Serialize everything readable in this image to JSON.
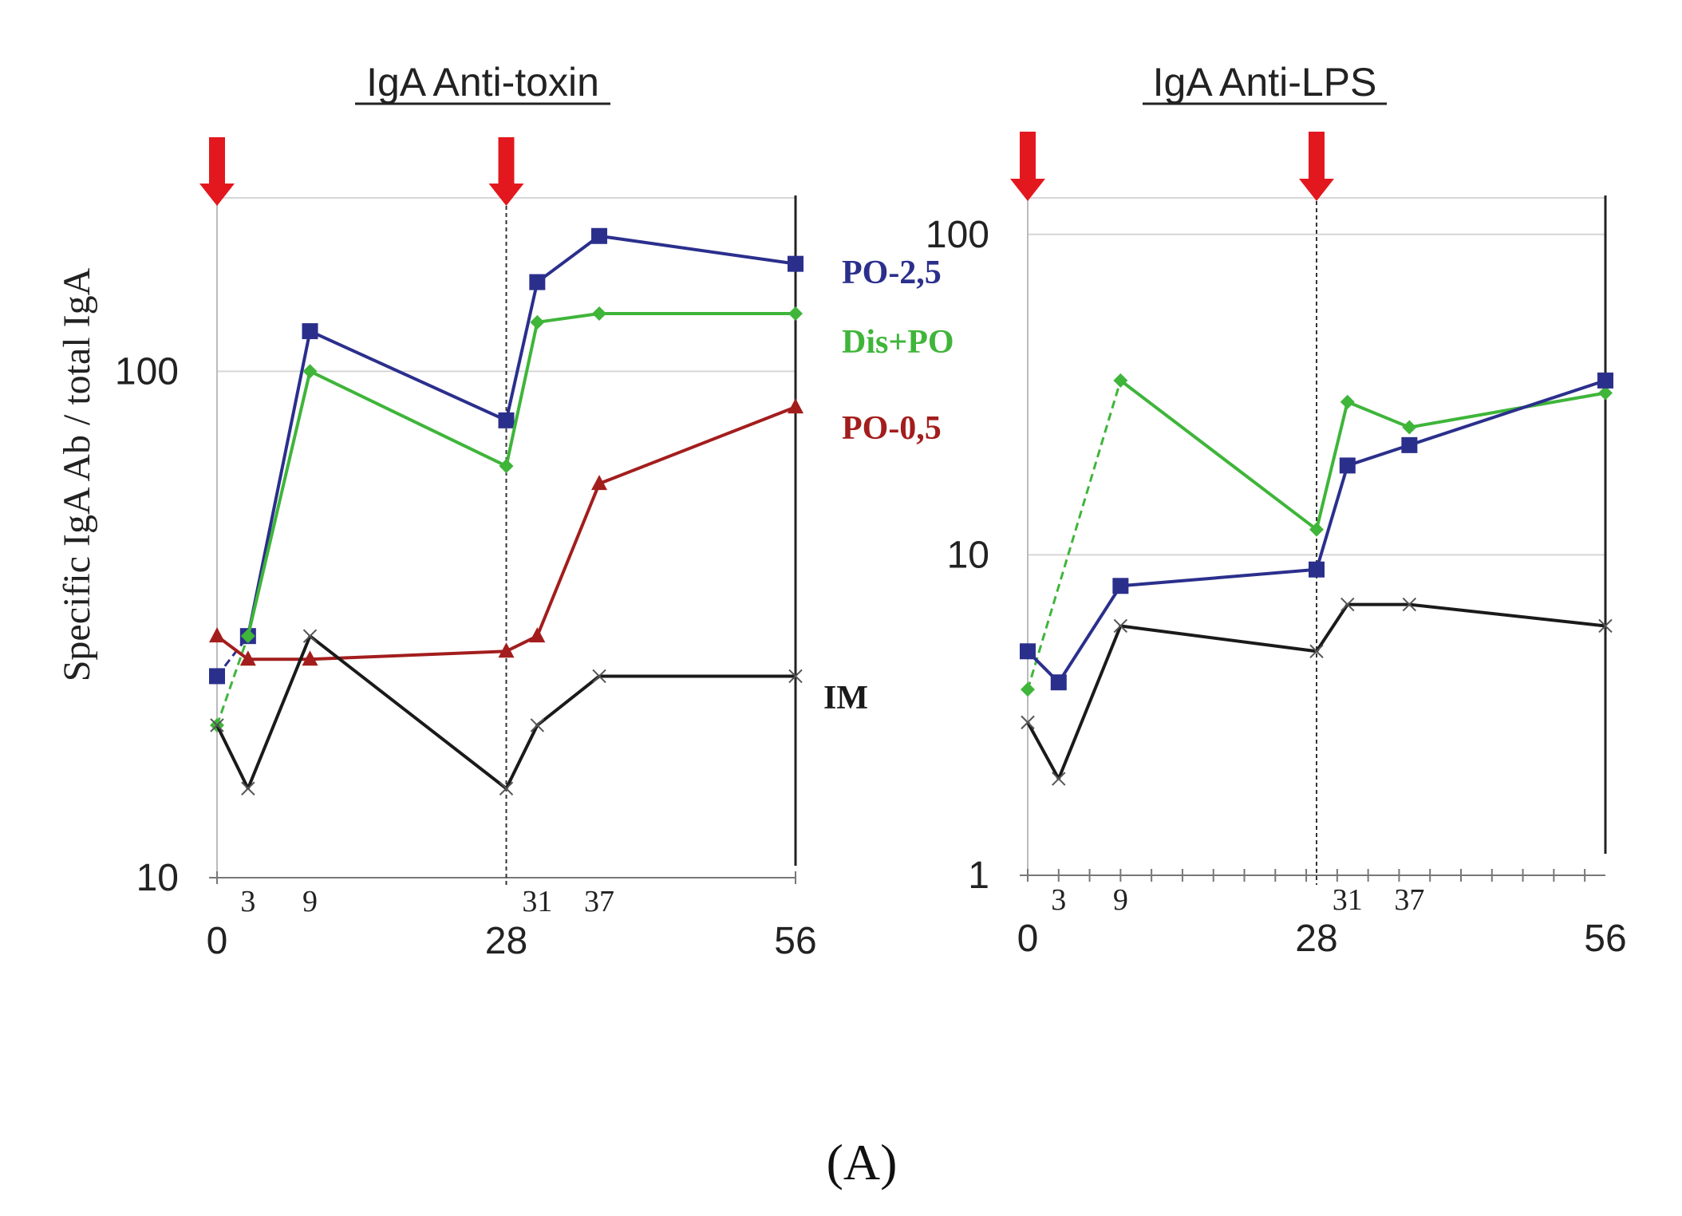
{
  "caption": "(A)",
  "colors": {
    "PO-2,5": "#2b2f8c",
    "Dis+PO": "#3fb53a",
    "PO-0,5": "#a31d1d",
    "IM": "#1a1a1a",
    "arrow": "#e3181f",
    "grid": "#d6d6d6"
  },
  "chart_data": [
    {
      "type": "line",
      "title": "IgA Anti-toxin",
      "ylabel": "Specific IgA Ab / total IgA",
      "yscale": "log",
      "ylim": [
        10,
        220
      ],
      "yticks": [
        10,
        100
      ],
      "ytick_labels": [
        "10",
        "100"
      ],
      "xlim": [
        0,
        56
      ],
      "xticks_major": [
        0,
        28,
        56
      ],
      "xtick_major_labels": [
        "0",
        "28",
        "56"
      ],
      "xticks_minor": [
        3,
        9,
        31,
        37
      ],
      "xtick_minor_labels": [
        "3",
        "9",
        "31",
        "37"
      ],
      "immunization_arrows": [
        0,
        28
      ],
      "series": [
        {
          "name": "PO-2,5",
          "marker": "square",
          "dashed_first_segment": true,
          "x": [
            0,
            3,
            9,
            28,
            31,
            37,
            56
          ],
          "y": [
            25,
            30,
            120,
            80,
            150,
            185,
            163
          ]
        },
        {
          "name": "Dis+PO",
          "marker": "diamond",
          "dashed_first_segment": true,
          "x": [
            0,
            3,
            9,
            28,
            31,
            37,
            56
          ],
          "y": [
            20,
            30,
            100,
            65,
            125,
            130,
            130
          ]
        },
        {
          "name": "PO-0,5",
          "marker": "triangle",
          "dashed_first_segment": false,
          "x": [
            0,
            3,
            9,
            28,
            31,
            37,
            56
          ],
          "y": [
            30,
            27,
            27,
            28,
            30,
            60,
            85
          ]
        },
        {
          "name": "IM",
          "marker": "x",
          "dashed_first_segment": false,
          "x": [
            0,
            3,
            9,
            28,
            31,
            37,
            56
          ],
          "y": [
            20,
            15,
            30,
            15,
            20,
            25,
            25
          ]
        }
      ],
      "legend": [
        "PO-2,5",
        "Dis+PO",
        "PO-0,5",
        "IM"
      ]
    },
    {
      "type": "line",
      "title": "IgA  Anti-LPS",
      "ylabel": "",
      "yscale": "log",
      "ylim": [
        1,
        130
      ],
      "yticks": [
        1,
        10,
        100
      ],
      "ytick_labels": [
        "1",
        "10",
        "100"
      ],
      "xlim": [
        0,
        56
      ],
      "xticks_major": [
        0,
        28,
        56
      ],
      "xtick_major_labels": [
        "0",
        "28",
        "56"
      ],
      "xticks_minor": [
        3,
        9,
        31,
        37
      ],
      "xtick_minor_labels": [
        "3",
        "9",
        "31",
        "37"
      ],
      "immunization_arrows": [
        0,
        28
      ],
      "series": [
        {
          "name": "Dis+PO",
          "marker": "diamond",
          "dashed_first_segment": true,
          "x": [
            0,
            9,
            28,
            31,
            37,
            56
          ],
          "y": [
            3.8,
            35,
            12,
            30,
            25,
            32
          ]
        },
        {
          "name": "PO-2,5",
          "marker": "square",
          "dashed_first_segment": false,
          "x": [
            0,
            3,
            9,
            28,
            31,
            37,
            56
          ],
          "y": [
            5,
            4,
            8,
            9,
            19,
            22,
            35
          ]
        },
        {
          "name": "IM",
          "marker": "x",
          "dashed_first_segment": false,
          "x": [
            0,
            3,
            9,
            28,
            31,
            37,
            56
          ],
          "y": [
            3,
            2,
            6,
            5,
            7,
            7,
            6
          ]
        }
      ],
      "legend": []
    }
  ]
}
